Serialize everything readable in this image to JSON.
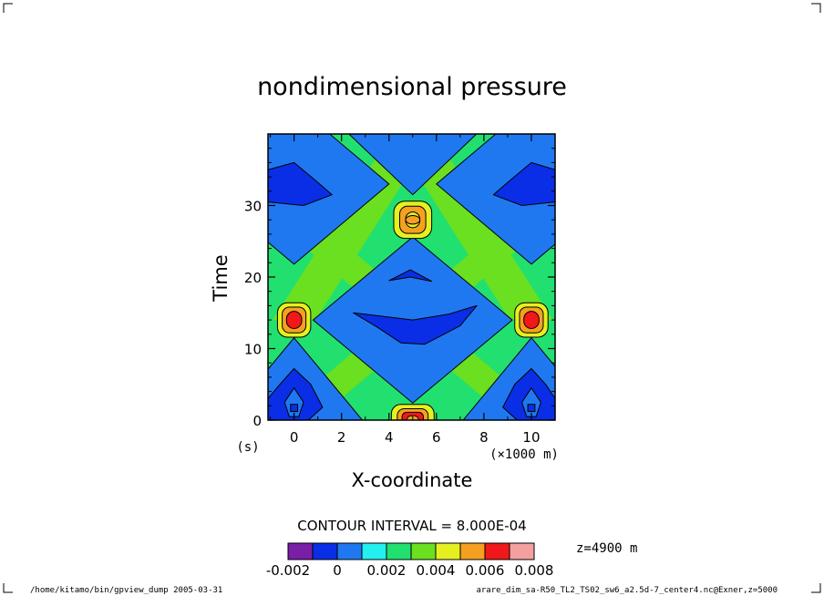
{
  "chart_data": {
    "type": "heatmap",
    "title": "nondimensional pressure",
    "xlabel": "X-coordinate",
    "ylabel": "Time",
    "x_unit": "(×1000 m)",
    "y_unit": "(s)",
    "xlim": [
      -1.1,
      11
    ],
    "ylim": [
      0,
      40
    ],
    "x_ticks": [
      0,
      2,
      4,
      6,
      8,
      10
    ],
    "y_ticks": [
      0,
      10,
      20,
      30
    ],
    "contour_interval_label": "CONTOUR INTERVAL = 8.000E-04",
    "level_annotation": "z=4900  m",
    "colorbar": {
      "colors": [
        "#7a1ea8",
        "#0a2ee6",
        "#1f78f0",
        "#22f0f0",
        "#22e070",
        "#6ae020",
        "#e6f020",
        "#f5a020",
        "#f01818",
        "#f5a0a0"
      ],
      "tick_labels": [
        "-0.002",
        "0",
        "0.002",
        "0.004",
        "0.006",
        "0.008"
      ]
    },
    "bands": {
      "deep_blue": "#0a2ee6",
      "blue": "#1f78f0",
      "green": "#22e070",
      "lime": "#6ae020",
      "yellow": "#e6f020",
      "orange": "#f5a020",
      "red": "#f01818"
    },
    "features": [
      {
        "kind": "peak",
        "x": 5.0,
        "y": 28.0,
        "max_level": 0.006
      },
      {
        "kind": "peak",
        "x": 0.0,
        "y": 14.0,
        "max_level": 0.007
      },
      {
        "kind": "peak",
        "x": 10.0,
        "y": 14.0,
        "max_level": 0.007
      },
      {
        "kind": "peak",
        "x": 5.0,
        "y": 0.0,
        "max_level": 0.008
      },
      {
        "kind": "trough",
        "x": 0.0,
        "y": 33.0,
        "min_level": 0.0
      },
      {
        "kind": "trough",
        "x": 10.0,
        "y": 33.0,
        "min_level": 0.0
      },
      {
        "kind": "trough",
        "x": 5.0,
        "y": 14.0,
        "min_level": 0.0
      },
      {
        "kind": "trough",
        "x": 0.0,
        "y": 3.0,
        "min_level": 0.0
      },
      {
        "kind": "trough",
        "x": 10.0,
        "y": 3.0,
        "min_level": 0.0
      }
    ]
  },
  "footer": {
    "left": "/home/kitamo/bin/gpview_dump  2005-03-31",
    "right": "arare_dim_sa-R50_TL2_TS02_sw6_a2.5d-7_center4.nc@Exner,z=5000"
  }
}
